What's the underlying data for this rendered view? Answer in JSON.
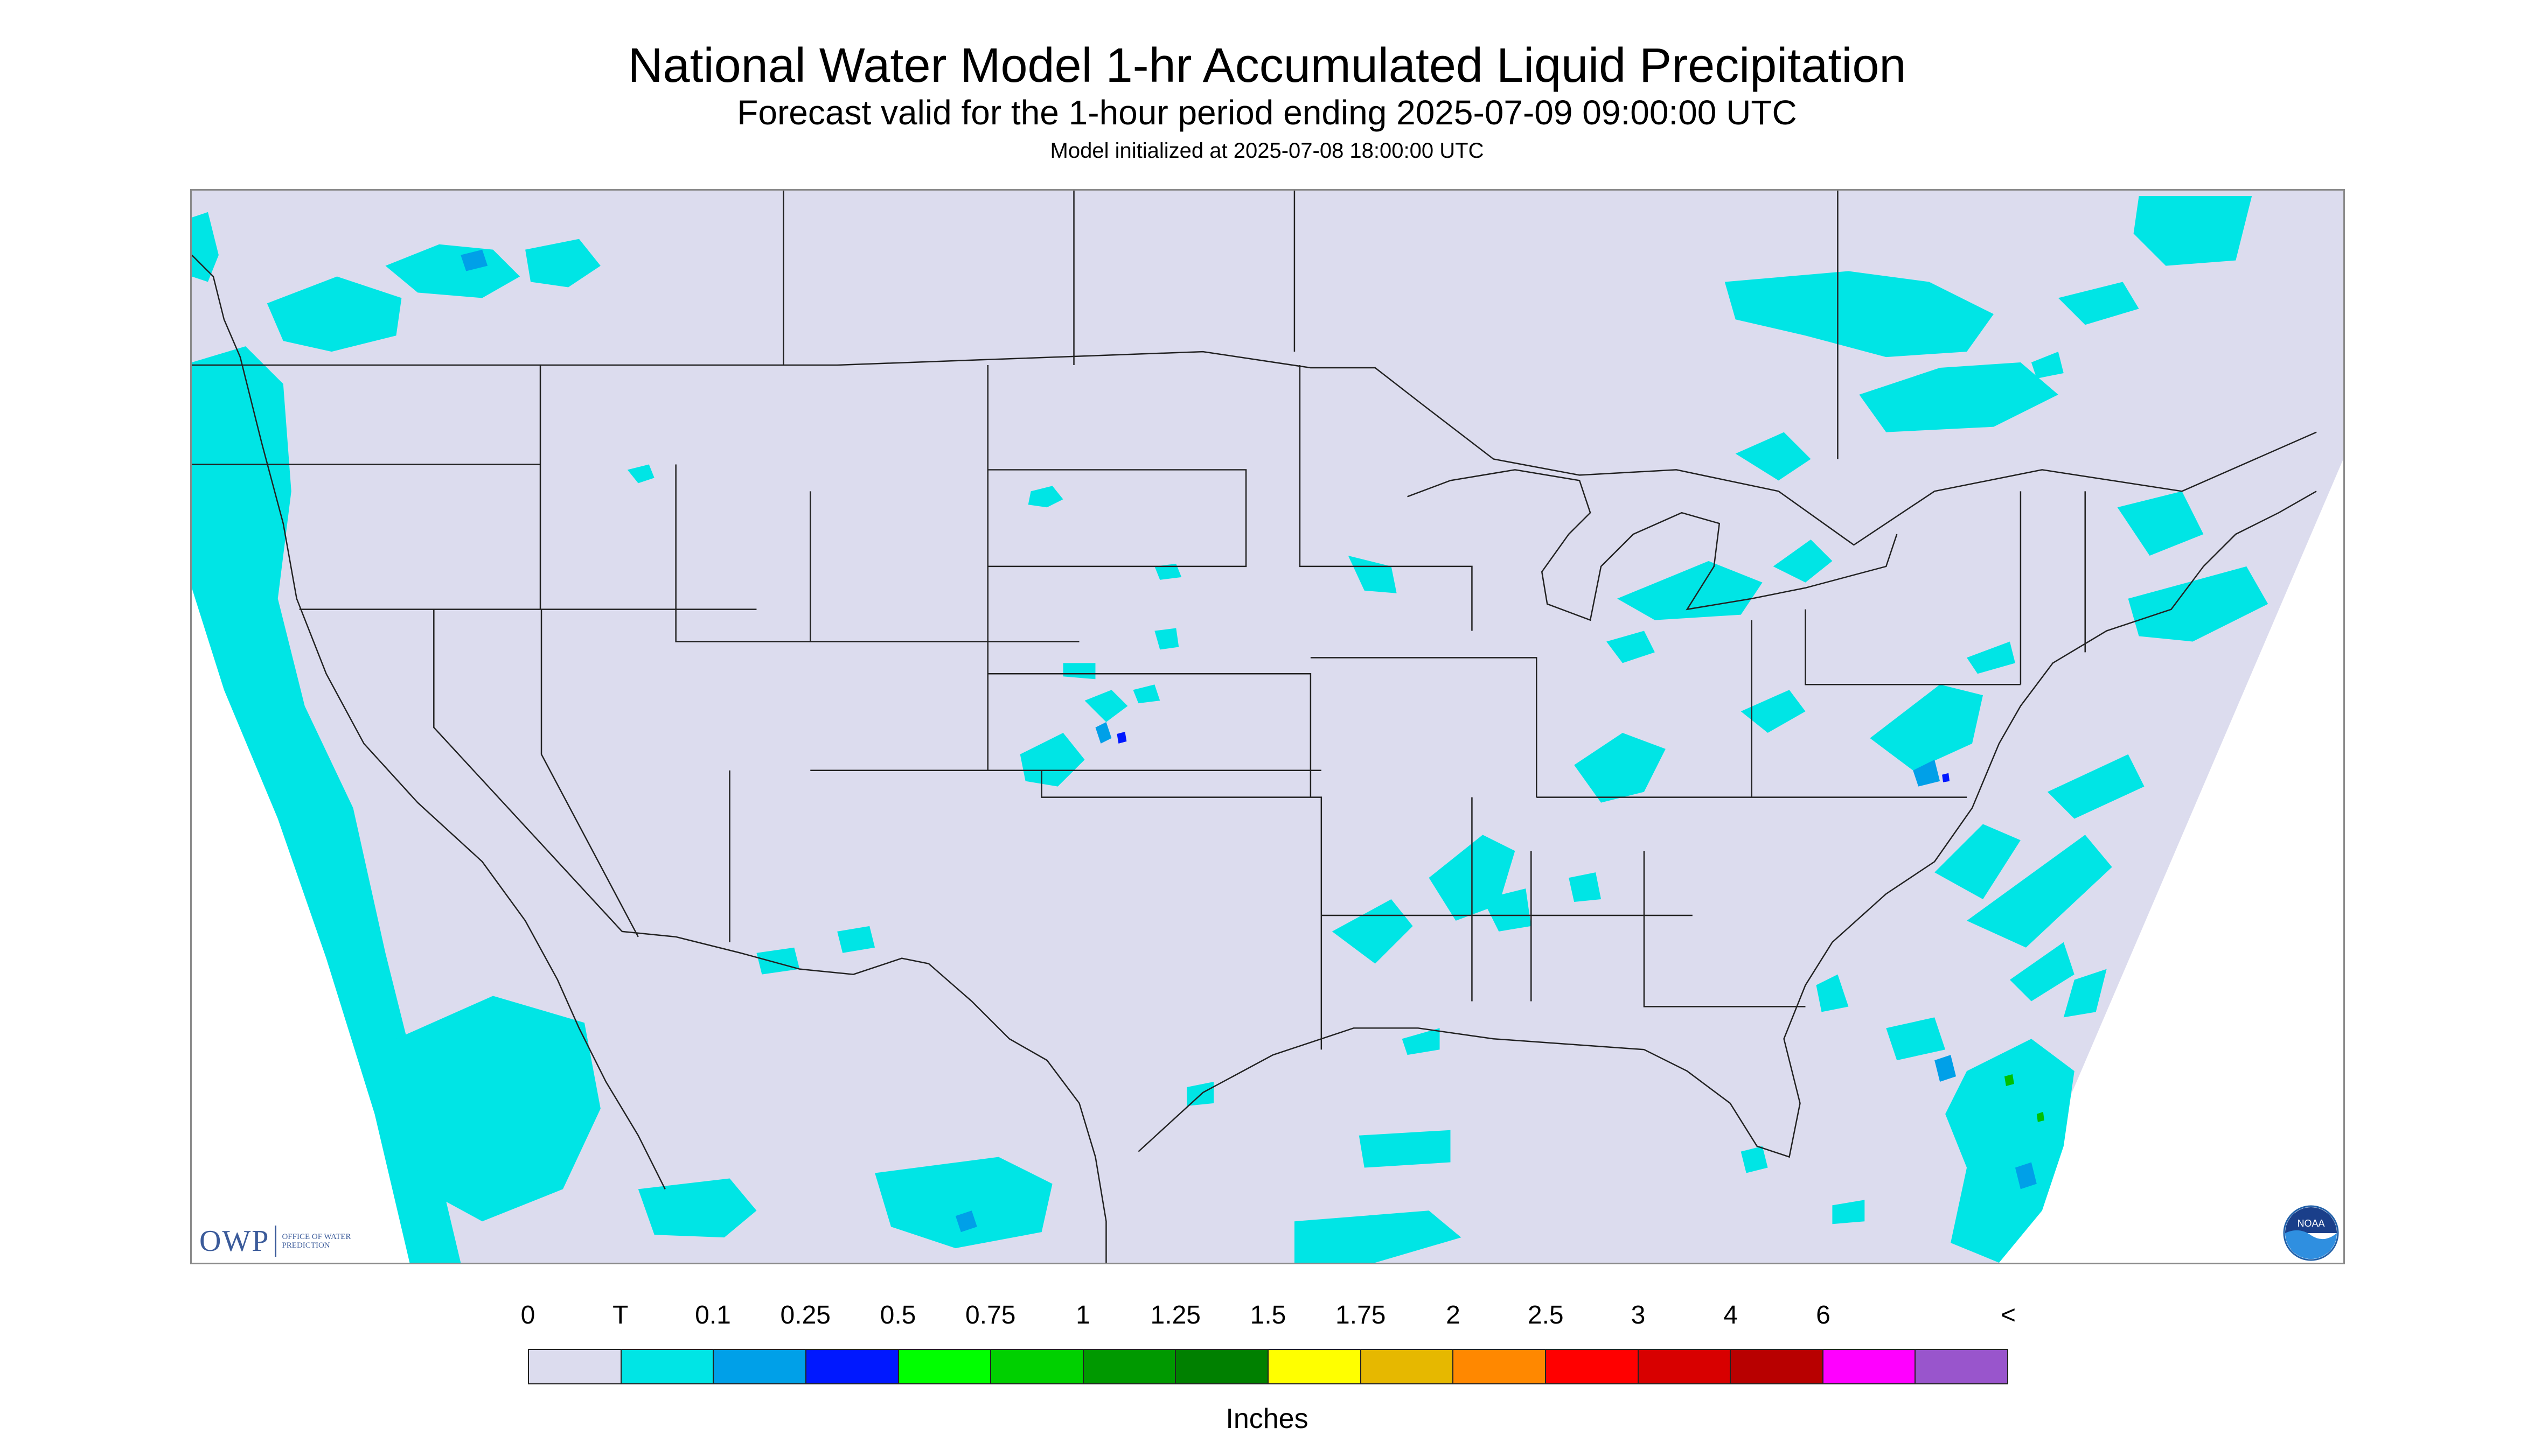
{
  "header": {
    "title": "National Water Model 1-hr Accumulated Liquid Precipitation",
    "subtitle": "Forecast valid for the 1-hour period ending 2025-07-09 09:00:00 UTC",
    "init_line": "Model initialized at 2025-07-08 18:00:00 UTC"
  },
  "map": {
    "background_color": "#dcdcee",
    "outside_color": "#ffffff",
    "boundary_color": "#222222",
    "precip_light_color": "#00e5e5",
    "precip_mod_color": "#00a0e8",
    "precip_heavy_color": "#0018ff",
    "precip_green_color": "#00c000"
  },
  "logos": {
    "owp_letters": "OWP",
    "owp_text": "OFFICE OF WATER PREDICTION",
    "noaa_text": "NOAA",
    "owp_icon": "owp-logo",
    "noaa_icon": "noaa-logo"
  },
  "legend": {
    "ticks": [
      "0",
      "T",
      "0.1",
      "0.25",
      "0.5",
      "0.75",
      "1",
      "1.25",
      "1.5",
      "1.75",
      "2",
      "2.5",
      "3",
      "4",
      "6",
      "<"
    ],
    "colors": [
      "#dcdcee",
      "#00e5e5",
      "#00a0e8",
      "#0018ff",
      "#00ff00",
      "#00d000",
      "#009900",
      "#008000",
      "#ffff00",
      "#e6b800",
      "#ff8800",
      "#ff0000",
      "#d80000",
      "#b80000",
      "#ff00ff",
      "#9955cc"
    ],
    "unit_label": "Inches"
  }
}
